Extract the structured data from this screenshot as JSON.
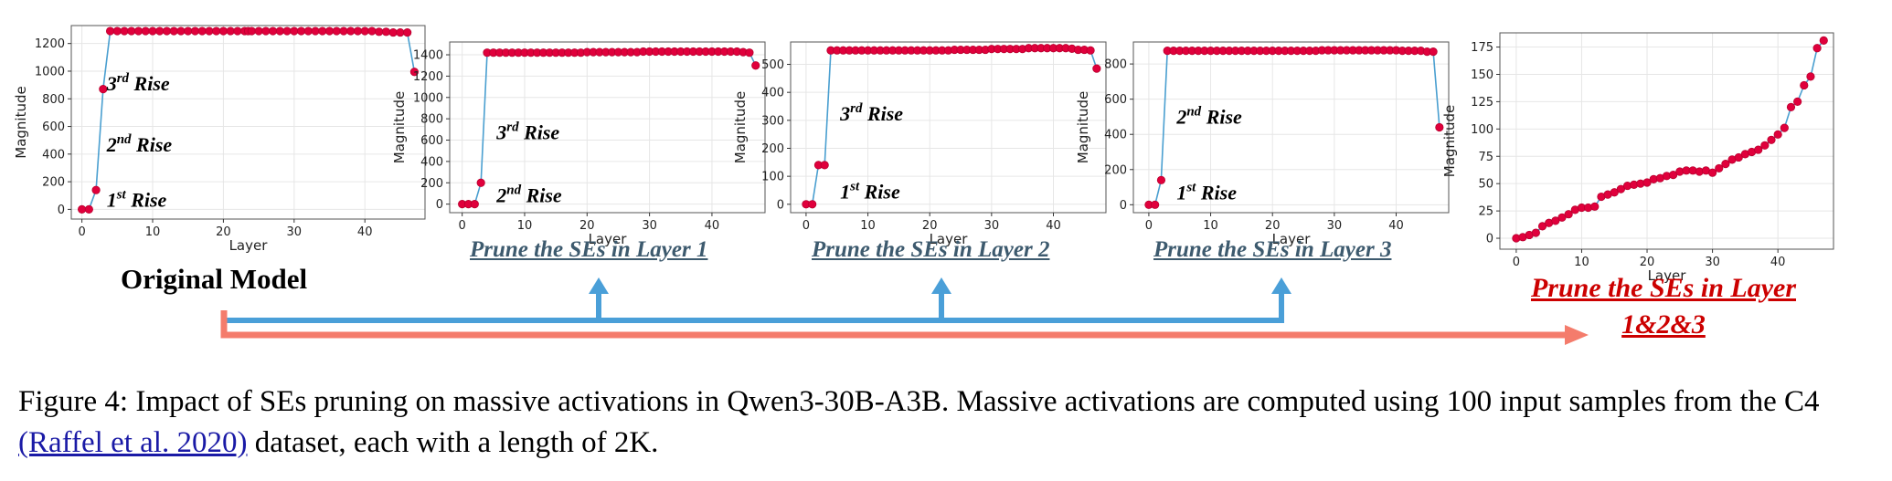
{
  "chart_data": [
    {
      "type": "line",
      "title": "",
      "xlabel": "Layer",
      "ylabel": "Magnitude",
      "xlim": [
        -1.5,
        48.5
      ],
      "ylim": [
        -70,
        1330
      ],
      "xticks": [
        0,
        10,
        20,
        30,
        40
      ],
      "yticks": [
        0,
        200,
        400,
        600,
        800,
        1000,
        1200
      ],
      "x": [
        0,
        1,
        2,
        3,
        4,
        5,
        6,
        7,
        8,
        9,
        10,
        11,
        12,
        13,
        14,
        15,
        16,
        17,
        18,
        19,
        20,
        21,
        22,
        23,
        23.5,
        24,
        25,
        26,
        27,
        28,
        29,
        30,
        31,
        32,
        33,
        34,
        35,
        36,
        37,
        38,
        39,
        40,
        41,
        42,
        43,
        44,
        45,
        46,
        47
      ],
      "y": [
        0,
        0,
        140,
        870,
        1290,
        1290,
        1290,
        1290,
        1290,
        1290,
        1290,
        1290,
        1290,
        1290,
        1290,
        1290,
        1290,
        1290,
        1290,
        1290,
        1290,
        1290,
        1290,
        1290,
        1290,
        1290,
        1290,
        1290,
        1290,
        1290,
        1290,
        1290,
        1290,
        1290,
        1290,
        1290,
        1290,
        1290,
        1290,
        1290,
        1290,
        1290,
        1290,
        1285,
        1285,
        1280,
        1280,
        1280,
        995
      ],
      "annotations": [
        {
          "text": "3rd Rise",
          "base": "3",
          "sup": "rd",
          "word": " Rise",
          "x": 3.5,
          "y": 860
        },
        {
          "text": "2nd Rise",
          "base": "2",
          "sup": "nd",
          "word": " Rise",
          "x": 3.5,
          "y": 420
        },
        {
          "text": "1st Rise",
          "base": "1",
          "sup": "st",
          "word": " Rise",
          "x": 3.5,
          "y": 20
        }
      ]
    },
    {
      "type": "line",
      "title": "Prune the SEs in Layer 1",
      "xlabel": "Layer",
      "ylabel": "Magnitude",
      "xlim": [
        -2,
        48.5
      ],
      "ylim": [
        -80,
        1520
      ],
      "xticks": [
        0,
        10,
        20,
        30,
        40
      ],
      "yticks": [
        0,
        200,
        400,
        600,
        800,
        1000,
        1200,
        1400
      ],
      "x": [
        0,
        1,
        2,
        3,
        4,
        5,
        6,
        7,
        8,
        9,
        10,
        11,
        12,
        13,
        14,
        15,
        16,
        17,
        18,
        19,
        20,
        21,
        22,
        23,
        24,
        25,
        26,
        27,
        28,
        29,
        30,
        31,
        32,
        33,
        34,
        35,
        36,
        37,
        38,
        39,
        40,
        41,
        42,
        43,
        44,
        45,
        46,
        47
      ],
      "y": [
        0,
        0,
        0,
        200,
        1420,
        1420,
        1420,
        1420,
        1420,
        1420,
        1420,
        1420,
        1420,
        1420,
        1420,
        1420,
        1420,
        1420,
        1420,
        1420,
        1425,
        1425,
        1425,
        1425,
        1425,
        1425,
        1425,
        1425,
        1425,
        1430,
        1430,
        1430,
        1430,
        1430,
        1430,
        1430,
        1430,
        1430,
        1430,
        1430,
        1430,
        1430,
        1430,
        1430,
        1430,
        1425,
        1420,
        1300
      ],
      "annotations": [
        {
          "text": "3rd Rise",
          "base": "3",
          "sup": "rd",
          "word": " Rise",
          "x": 5.5,
          "y": 610
        },
        {
          "text": "2nd Rise",
          "base": "2",
          "sup": "nd",
          "word": " Rise",
          "x": 5.5,
          "y": 20
        }
      ]
    },
    {
      "type": "line",
      "title": "Prune the SEs in Layer 2",
      "xlabel": "Layer",
      "ylabel": "Magnitude",
      "xlim": [
        -2.5,
        48.5
      ],
      "ylim": [
        -30,
        580
      ],
      "xticks": [
        0,
        10,
        20,
        30,
        40
      ],
      "yticks": [
        0,
        100,
        200,
        300,
        400,
        500
      ],
      "x": [
        0,
        1,
        2,
        3,
        4,
        5,
        6,
        7,
        8,
        9,
        10,
        11,
        12,
        13,
        14,
        15,
        16,
        17,
        18,
        19,
        20,
        21,
        22,
        23,
        24,
        25,
        26,
        27,
        28,
        29,
        30,
        31,
        32,
        33,
        34,
        35,
        36,
        37,
        38,
        39,
        40,
        41,
        42,
        43,
        44,
        45,
        46,
        47
      ],
      "y": [
        0,
        0,
        140,
        140,
        550,
        550,
        550,
        550,
        550,
        550,
        550,
        550,
        550,
        550,
        550,
        550,
        550,
        550,
        550,
        550,
        550,
        550,
        550,
        550,
        552,
        552,
        552,
        552,
        552,
        552,
        555,
        555,
        555,
        555,
        555,
        555,
        558,
        558,
        558,
        558,
        558,
        558,
        558,
        556,
        552,
        552,
        550,
        485
      ],
      "annotations": [
        {
          "text": "3rd Rise",
          "base": "3",
          "sup": "rd",
          "word": " Rise",
          "x": 5.5,
          "y": 300
        },
        {
          "text": "1st Rise",
          "base": "1",
          "sup": "st",
          "word": " Rise",
          "x": 5.5,
          "y": 20
        }
      ]
    },
    {
      "type": "line",
      "title": "Prune the SEs in Layer 3",
      "xlabel": "Layer",
      "ylabel": "Magnitude",
      "xlim": [
        -2.5,
        48.5
      ],
      "ylim": [
        -45,
        925
      ],
      "xticks": [
        0,
        10,
        20,
        30,
        40
      ],
      "yticks": [
        0,
        200,
        400,
        600,
        800
      ],
      "x": [
        0,
        1,
        2,
        3,
        4,
        5,
        6,
        7,
        8,
        9,
        10,
        11,
        12,
        13,
        14,
        15,
        16,
        17,
        18,
        19,
        20,
        21,
        22,
        23,
        24,
        25,
        26,
        27,
        28,
        29,
        30,
        31,
        32,
        33,
        34,
        35,
        36,
        37,
        38,
        39,
        40,
        41,
        42,
        43,
        44,
        45,
        46,
        47
      ],
      "y": [
        0,
        0,
        140,
        875,
        875,
        875,
        875,
        875,
        875,
        875,
        875,
        875,
        875,
        875,
        875,
        875,
        875,
        875,
        875,
        875,
        875,
        875,
        875,
        875,
        875,
        875,
        875,
        875,
        878,
        878,
        878,
        878,
        878,
        878,
        878,
        878,
        878,
        878,
        878,
        878,
        878,
        875,
        875,
        875,
        875,
        870,
        870,
        440
      ],
      "annotations": [
        {
          "text": "2nd Rise",
          "base": "2",
          "sup": "nd",
          "word": " Rise",
          "x": 4.5,
          "y": 460
        },
        {
          "text": "1st Rise",
          "base": "1",
          "sup": "st",
          "word": " Rise",
          "x": 4.5,
          "y": 30
        }
      ]
    },
    {
      "type": "line",
      "title": "Prune the SEs in Layer 1&2&3",
      "xlabel": "Layer",
      "ylabel": "Magnitude",
      "xlim": [
        -2.5,
        48.5
      ],
      "ylim": [
        -10,
        188
      ],
      "xticks": [
        0,
        10,
        20,
        30,
        40
      ],
      "yticks": [
        0,
        25,
        50,
        75,
        100,
        125,
        150,
        175
      ],
      "x": [
        0,
        1,
        2,
        3,
        4,
        5,
        6,
        7,
        8,
        9,
        10,
        11,
        12,
        13,
        14,
        15,
        16,
        17,
        18,
        19,
        20,
        21,
        22,
        23,
        24,
        25,
        26,
        27,
        28,
        29,
        30,
        31,
        32,
        33,
        34,
        35,
        36,
        37,
        38,
        39,
        40,
        41,
        42,
        43,
        44,
        45,
        46,
        47
      ],
      "y": [
        0,
        1,
        3,
        5,
        11,
        14,
        16,
        19,
        22,
        26,
        28,
        28,
        29,
        38,
        40,
        42,
        45,
        48,
        49,
        50,
        51,
        54,
        55,
        57,
        58,
        61,
        62,
        62,
        61,
        62,
        60,
        64,
        68,
        72,
        74,
        77,
        79,
        81,
        85,
        90,
        95,
        101,
        120,
        125,
        140,
        148,
        174,
        181
      ],
      "annotations": []
    }
  ],
  "labels": {
    "original_model": "Original Model",
    "prune_layer_1": "Prune the SEs in Layer 1",
    "prune_layer_2": "Prune the SEs in Layer 2",
    "prune_layer_3": "Prune the SEs in Layer 3",
    "prune_all_line1": "Prune the SEs in Layer",
    "prune_all_line2": "1&2&3"
  },
  "caption": {
    "prefix": "Figure 4: Impact of SEs pruning on massive activations in Qwen3-30B-A3B. Massive activations are computed using 100 input samples from the C4 ",
    "citation": "(Raffel et al. 2020)",
    "suffix": " dataset, each with a length of 2K."
  },
  "colors": {
    "line": "#4a9fd0",
    "marker": "#e0003c",
    "marker_edge": "#b8002e",
    "grid": "#e6e6e6",
    "blue_arrow": "#4a9fd8",
    "red_arrow": "#f47c6c",
    "panel_title": "#3d5a6e",
    "red_title": "#cc0000"
  }
}
